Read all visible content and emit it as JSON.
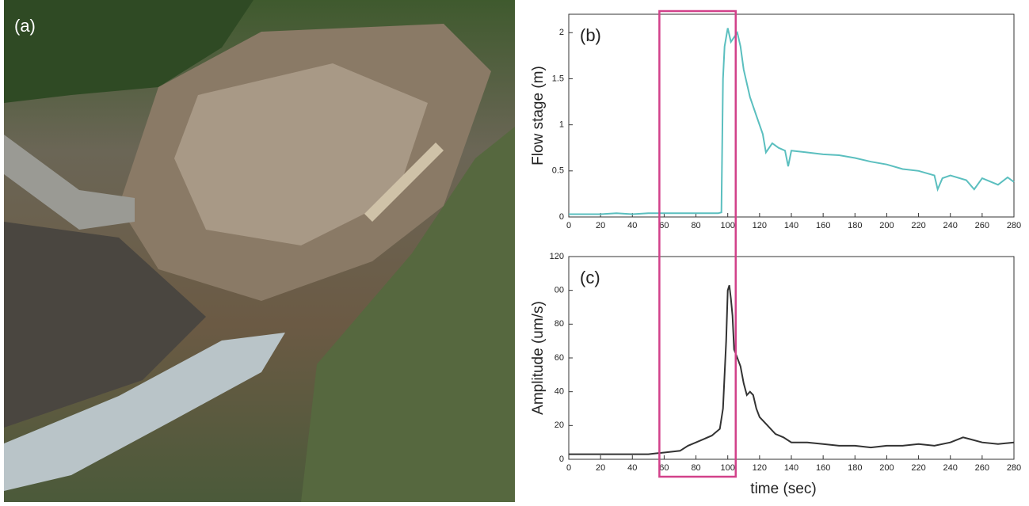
{
  "photo_label": "(a)",
  "highlight": {
    "xlim": [
      57,
      105
    ],
    "color": "#d2418a"
  },
  "chart_data": [
    {
      "type": "line",
      "annotation": "(b)",
      "y_label": "Flow stage (m)",
      "color": "#5bbfbf",
      "xlim": [
        0,
        280
      ],
      "xticks": [
        0,
        20,
        40,
        60,
        80,
        100,
        120,
        140,
        160,
        180,
        200,
        220,
        240,
        260,
        280
      ],
      "ylim": [
        0,
        2.2
      ],
      "yticks": [
        0,
        0.5,
        1,
        1.5,
        2
      ],
      "x": [
        0,
        10,
        20,
        30,
        40,
        50,
        60,
        70,
        80,
        90,
        94,
        96,
        97,
        98,
        100,
        102,
        104,
        106,
        108,
        110,
        114,
        118,
        122,
        124,
        128,
        132,
        136,
        138,
        140,
        150,
        160,
        170,
        180,
        190,
        200,
        210,
        220,
        230,
        232,
        235,
        240,
        250,
        255,
        260,
        270,
        276,
        280
      ],
      "values": [
        0.03,
        0.03,
        0.03,
        0.04,
        0.03,
        0.04,
        0.04,
        0.04,
        0.04,
        0.04,
        0.04,
        0.05,
        1.5,
        1.85,
        2.05,
        1.9,
        1.95,
        2.0,
        1.85,
        1.6,
        1.3,
        1.1,
        0.9,
        0.7,
        0.8,
        0.75,
        0.72,
        0.55,
        0.72,
        0.7,
        0.68,
        0.67,
        0.64,
        0.6,
        0.57,
        0.52,
        0.5,
        0.45,
        0.3,
        0.42,
        0.45,
        0.4,
        0.3,
        0.42,
        0.35,
        0.43,
        0.38
      ]
    },
    {
      "type": "line",
      "annotation": "(c)",
      "y_label": "Amplitude (um/s)",
      "x_label": "time (sec)",
      "color": "#333333",
      "xlim": [
        0,
        280
      ],
      "xticks": [
        0,
        20,
        40,
        60,
        80,
        100,
        120,
        140,
        160,
        180,
        200,
        220,
        240,
        260,
        280
      ],
      "ylim": [
        0,
        120
      ],
      "yticks": [
        0,
        20,
        40,
        60,
        80,
        {
          "value": 100,
          "label": "00"
        },
        120
      ],
      "x": [
        0,
        10,
        20,
        30,
        40,
        50,
        55,
        60,
        70,
        75,
        80,
        85,
        90,
        95,
        97,
        99,
        100,
        101,
        102,
        103,
        104,
        106,
        108,
        110,
        112,
        114,
        116,
        118,
        120,
        125,
        130,
        135,
        140,
        150,
        160,
        170,
        180,
        190,
        200,
        210,
        220,
        230,
        240,
        248,
        252,
        260,
        270,
        280
      ],
      "values": [
        3,
        3,
        3,
        3,
        3,
        3,
        3.5,
        4,
        5,
        8,
        10,
        12,
        14,
        18,
        30,
        70,
        100,
        103,
        95,
        85,
        65,
        60,
        55,
        45,
        38,
        40,
        38,
        30,
        25,
        20,
        15,
        13,
        10,
        10,
        9,
        8,
        8,
        7,
        8,
        8,
        9,
        8,
        10,
        13,
        12,
        10,
        9,
        10
      ]
    }
  ]
}
